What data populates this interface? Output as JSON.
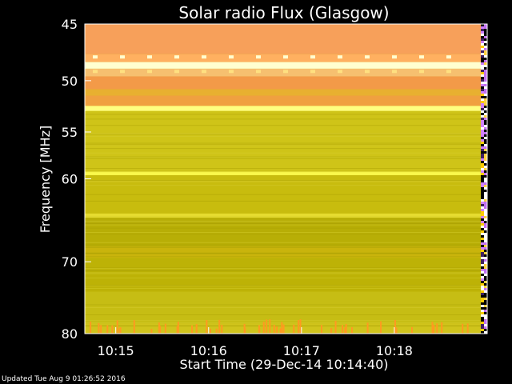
{
  "chart_data": {
    "type": "heatmap",
    "title": "Solar radio Flux (Glasgow)",
    "ylabel": "Frequency [MHz]",
    "xlabel": "Start Time (29-Dec-14 10:14:40)",
    "y_scale": "log",
    "y_ticks": [
      45,
      50,
      55,
      60,
      70,
      80
    ],
    "y_range": [
      45,
      80
    ],
    "x_ticks": [
      "10:15",
      "10:16",
      "10:17",
      "10:18"
    ],
    "x_range_seconds": [
      0,
      260
    ],
    "x_tick_seconds": [
      20,
      80,
      140,
      200
    ],
    "colors": {
      "low_band": "#f2a24a",
      "high_band": "#c8be10",
      "bright_line": "#ffff60",
      "peak": "#ffffd0",
      "orange_spike": "#ff9a20"
    },
    "bands": [
      {
        "from_mhz": 45,
        "to_mhz": 47.6,
        "color": "#f7a05a"
      },
      {
        "from_mhz": 47.6,
        "to_mhz": 48.3,
        "color": "#ffb060"
      },
      {
        "from_mhz": 48.3,
        "to_mhz": 48.9,
        "color": "#ffffd0"
      },
      {
        "from_mhz": 48.9,
        "to_mhz": 49.6,
        "color": "#f6c070"
      },
      {
        "from_mhz": 49.6,
        "to_mhz": 50.8,
        "color": "#f39a48"
      },
      {
        "from_mhz": 50.8,
        "to_mhz": 51.4,
        "color": "#e8b030"
      },
      {
        "from_mhz": 51.4,
        "to_mhz": 52.4,
        "color": "#f0a040"
      },
      {
        "from_mhz": 52.4,
        "to_mhz": 52.9,
        "color": "#ffff80"
      },
      {
        "from_mhz": 52.9,
        "to_mhz": 59.2,
        "color": "#cfc418"
      },
      {
        "from_mhz": 59.2,
        "to_mhz": 59.6,
        "color": "#ffff50"
      },
      {
        "from_mhz": 59.6,
        "to_mhz": 64.0,
        "color": "#c8bc0e"
      },
      {
        "from_mhz": 64.0,
        "to_mhz": 64.5,
        "color": "#e6dc30"
      },
      {
        "from_mhz": 64.5,
        "to_mhz": 68.0,
        "color": "#b8ae06"
      },
      {
        "from_mhz": 68.0,
        "to_mhz": 69.5,
        "color": "#c9b40c"
      },
      {
        "from_mhz": 69.5,
        "to_mhz": 74.0,
        "color": "#bdb206"
      },
      {
        "from_mhz": 74.0,
        "to_mhz": 78.5,
        "color": "#c6bd14"
      },
      {
        "from_mhz": 78.5,
        "to_mhz": 80.0,
        "color": "#d0c41c"
      }
    ]
  },
  "footer": {
    "updated": "Updated Tue Aug  9 01:26:52 2016"
  }
}
